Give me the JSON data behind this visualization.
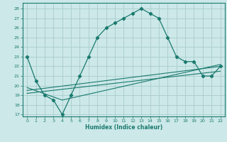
{
  "xlabel": "Humidex (Indice chaleur)",
  "bg_color": "#cce8e8",
  "grid_color": "#aacccc",
  "line_color": "#1a7a6e",
  "xlim": [
    -0.5,
    22.5
  ],
  "ylim": [
    16.8,
    28.6
  ],
  "yticks": [
    17,
    18,
    19,
    20,
    21,
    22,
    23,
    24,
    25,
    26,
    27,
    28
  ],
  "xticks": [
    0,
    1,
    2,
    3,
    4,
    5,
    6,
    7,
    8,
    9,
    10,
    11,
    12,
    13,
    14,
    15,
    16,
    17,
    18,
    19,
    20,
    21,
    22
  ],
  "main_x": [
    0,
    1,
    2,
    3,
    4,
    5,
    6,
    7,
    8,
    9,
    10,
    11,
    12,
    13,
    14,
    15,
    16,
    17,
    18,
    19,
    20,
    21,
    22
  ],
  "main_y": [
    23,
    20.5,
    19,
    18.5,
    17,
    19,
    21,
    23,
    25,
    26,
    26.5,
    27,
    27.5,
    28,
    27.5,
    27,
    25,
    23,
    22.5,
    22.5,
    21,
    21,
    22
  ],
  "line2_x": [
    0,
    22
  ],
  "line2_y": [
    19.5,
    22.0
  ],
  "line3_x": [
    0,
    22
  ],
  "line3_y": [
    19.2,
    21.5
  ],
  "line4_x": [
    0,
    4,
    22
  ],
  "line4_y": [
    19.8,
    18.5,
    22.2
  ]
}
